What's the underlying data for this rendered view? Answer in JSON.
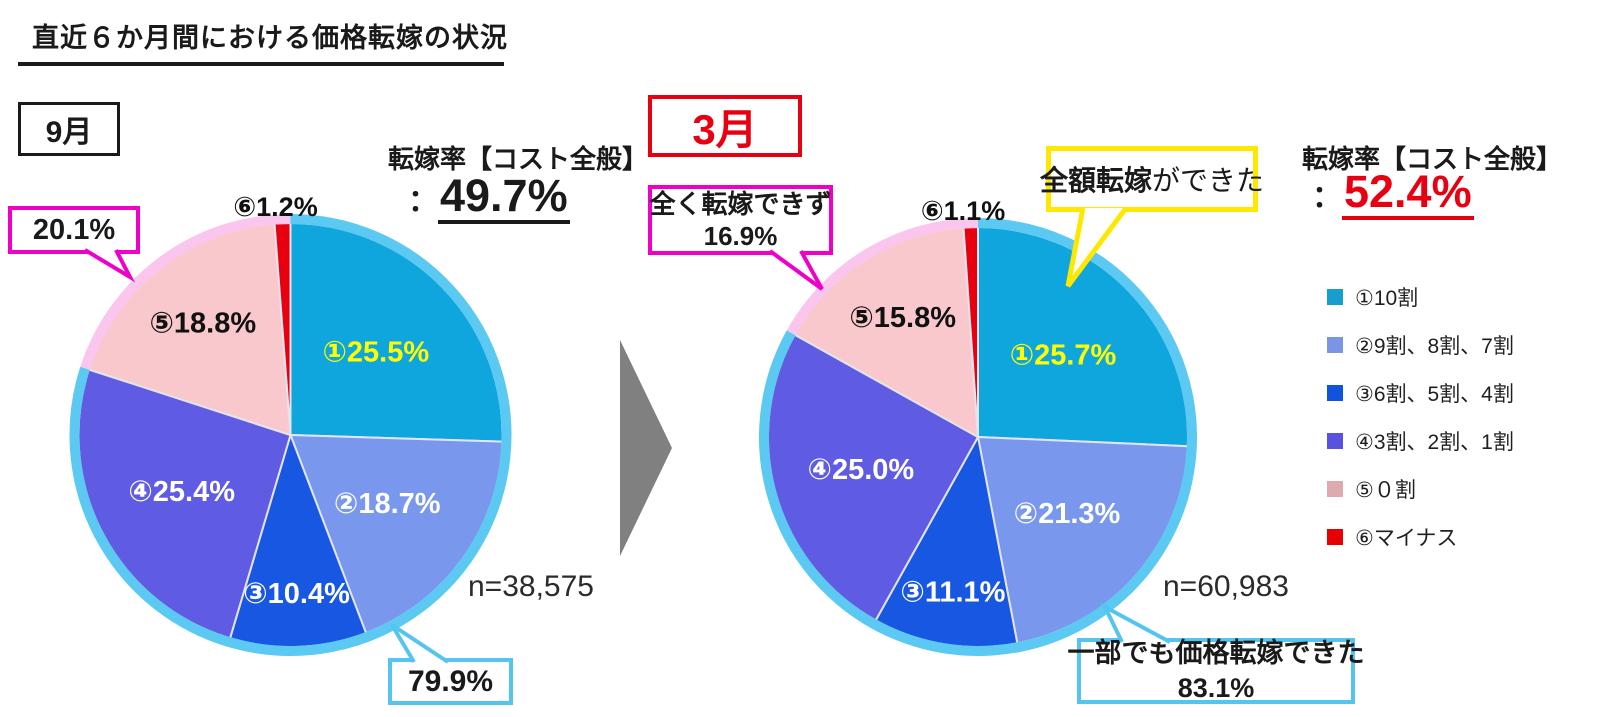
{
  "title": "直近６か月間における価格転嫁の状況",
  "colors": {
    "slices": [
      "#0FA6DE",
      "#7997EC",
      "#1757E2",
      "#5F5BE3",
      "#F8C8CC",
      "#E8000F"
    ],
    "legend_squares": [
      "#189ECE",
      "#7B95E6",
      "#0E55DB",
      "#5952DE",
      "#DFA9B0",
      "#E60000"
    ],
    "slice_label_colors": [
      "#FFFF00",
      "#FFFFFF",
      "#FFFFFF",
      "#FFFFFF",
      "#111111",
      "#111111"
    ],
    "slice_separator": "#E4E4EE",
    "ring_passed": "#5BC9F1",
    "ring_not_passed": "#FBC6EE",
    "callout_magenta": "#EE00C8",
    "callout_cyan": "#55C5EF",
    "callout_yellow": "#FFE800",
    "accent_red": "#E60012",
    "arrow_gray": "#808080"
  },
  "legend": {
    "position": "right",
    "items": [
      {
        "label": "①10割"
      },
      {
        "label": "②9割、8割、7割"
      },
      {
        "label": "③6割、5割、4割"
      },
      {
        "label": "④3割、2割、1割"
      },
      {
        "label": "⑤０割"
      },
      {
        "label": "⑥マイナス"
      }
    ]
  },
  "chart_data": [
    {
      "type": "pie",
      "month": "9月",
      "unit": "%",
      "start_angle": "top",
      "direction": "clockwise",
      "categories": [
        "①10割",
        "②9割、8割、7割",
        "③6割、5割、4割",
        "④3割、2割、1割",
        "⑤０割",
        "⑥マイナス"
      ],
      "values": [
        25.5,
        18.7,
        10.4,
        25.4,
        18.8,
        1.2
      ],
      "slice_labels": [
        "①25.5%",
        "②18.7%",
        "③10.4%",
        "④25.4%",
        "⑤18.8%",
        "⑥1.2%"
      ],
      "rate_label": "転嫁率【コスト全般】",
      "rate_colon": "：",
      "rate_value": "49.7%",
      "n_label": "n=38,575",
      "callouts": [
        {
          "id": "not-passed-share",
          "text": "20.1%"
        },
        {
          "id": "passed-share",
          "text": "79.9%"
        }
      ]
    },
    {
      "type": "pie",
      "month": "3月",
      "unit": "%",
      "start_angle": "top",
      "direction": "clockwise",
      "categories": [
        "①10割",
        "②9割、8割、7割",
        "③6割、5割、4割",
        "④3割、2割、1割",
        "⑤０割",
        "⑥マイナス"
      ],
      "values": [
        25.7,
        21.3,
        11.1,
        25.0,
        15.8,
        1.1
      ],
      "slice_labels": [
        "①25.7%",
        "②21.3%",
        "③11.1%",
        "④25.0%",
        "⑤15.8%",
        "⑥1.1%"
      ],
      "rate_label": "転嫁率【コスト全般】",
      "rate_colon": "：",
      "rate_value": "52.4%",
      "n_label": "n=60,983",
      "callouts": [
        {
          "id": "not-passed-share",
          "line1": "全く転嫁できず",
          "line2": "16.9%"
        },
        {
          "id": "full-pass",
          "bold": "全額転嫁",
          "rest": "ができた"
        },
        {
          "id": "partial-pass",
          "line1": "一部でも価格転嫁できた",
          "line2": "83.1%"
        }
      ]
    }
  ]
}
